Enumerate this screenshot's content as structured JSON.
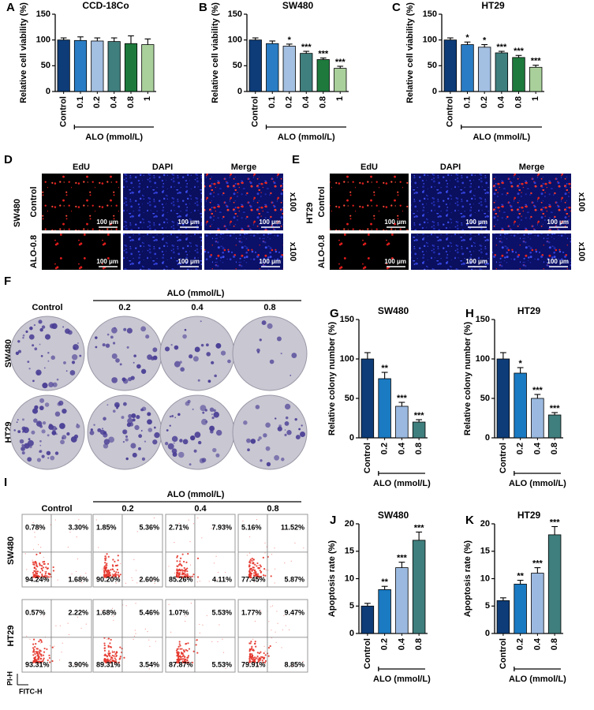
{
  "chart_data": [
    {
      "type": "bar",
      "label": "A",
      "title": "CCD-18Co",
      "ylabel": "Relative cell viability (%)",
      "xlabel": "ALO (mmol/L)",
      "categories": [
        "Control",
        "0.1",
        "0.2",
        "0.4",
        "0.8",
        "1"
      ],
      "values": [
        100,
        99,
        98,
        97,
        93,
        91
      ],
      "errors": [
        4,
        7,
        6,
        7,
        15,
        11
      ],
      "annotations": [
        null,
        null,
        null,
        null,
        null,
        null
      ],
      "colors": [
        "#0d3c78",
        "#2a7dc4",
        "#a3bfe2",
        "#3f7f7e",
        "#1d7a3c",
        "#a9d09b"
      ],
      "ylim": [
        0,
        150
      ],
      "yticks": [
        0,
        50,
        100,
        150
      ]
    },
    {
      "type": "bar",
      "label": "B",
      "title": "SW480",
      "ylabel": "Relative cell viability (%)",
      "xlabel": "ALO (mmol/L)",
      "categories": [
        "Control",
        "0.1",
        "0.2",
        "0.4",
        "0.8",
        "1"
      ],
      "values": [
        100,
        93,
        88,
        74,
        62,
        45
      ],
      "errors": [
        4,
        5,
        4,
        4,
        3,
        4
      ],
      "annotations": [
        null,
        null,
        "*",
        "***",
        "***",
        "***"
      ],
      "colors": [
        "#0d3c78",
        "#2a7dc4",
        "#a3bfe2",
        "#3f7f7e",
        "#1d7a3c",
        "#a9d09b"
      ],
      "ylim": [
        0,
        150
      ],
      "yticks": [
        0,
        50,
        100,
        150
      ]
    },
    {
      "type": "bar",
      "label": "C",
      "title": "HT29",
      "ylabel": "Relative cell viability (%)",
      "xlabel": "ALO (mmol/L)",
      "categories": [
        "Control",
        "0.1",
        "0.2",
        "0.4",
        "0.8",
        "1"
      ],
      "values": [
        100,
        91,
        86,
        75,
        66,
        47
      ],
      "errors": [
        4,
        5,
        5,
        3,
        4,
        4
      ],
      "annotations": [
        null,
        "*",
        "*",
        "***",
        "***",
        "***"
      ],
      "colors": [
        "#0d3c78",
        "#2a7dc4",
        "#a3bfe2",
        "#3f7f7e",
        "#1d7a3c",
        "#a9d09b"
      ],
      "ylim": [
        0,
        150
      ],
      "yticks": [
        0,
        50,
        100,
        150
      ]
    },
    {
      "type": "bar",
      "label": "G",
      "title": "SW480",
      "ylabel": "Relative colony number (%)",
      "xlabel": "ALO (mmol/L)",
      "categories": [
        "Control",
        "0.2",
        "0.4",
        "0.8"
      ],
      "values": [
        100,
        75,
        40,
        20
      ],
      "errors": [
        8,
        8,
        5,
        3
      ],
      "annotations": [
        null,
        "**",
        "***",
        "***"
      ],
      "colors": [
        "#0d3c78",
        "#1a7ac2",
        "#9bb9e0",
        "#3f7f7e"
      ],
      "ylim": [
        0,
        150
      ],
      "yticks": [
        0,
        50,
        100,
        150
      ]
    },
    {
      "type": "bar",
      "label": "H",
      "title": "HT29",
      "ylabel": "Relative colony number (%)",
      "xlabel": "ALO (mmol/L)",
      "categories": [
        "Control",
        "0.2",
        "0.4",
        "0.8"
      ],
      "values": [
        100,
        82,
        50,
        29
      ],
      "errors": [
        8,
        7,
        5,
        3
      ],
      "annotations": [
        null,
        "*",
        "***",
        "***"
      ],
      "colors": [
        "#0d3c78",
        "#1a7ac2",
        "#9bb9e0",
        "#3f7f7e"
      ],
      "ylim": [
        0,
        150
      ],
      "yticks": [
        0,
        50,
        100,
        150
      ]
    },
    {
      "type": "bar",
      "label": "J",
      "title": "SW480",
      "ylabel": "Apoptosis rate (%)",
      "xlabel": "ALO (mmol/L)",
      "categories": [
        "Control",
        "0.2",
        "0.4",
        "0.8"
      ],
      "values": [
        5,
        8,
        12,
        17
      ],
      "errors": [
        0.5,
        0.6,
        1,
        1.5
      ],
      "annotations": [
        null,
        "**",
        "***",
        "***"
      ],
      "colors": [
        "#0d3c78",
        "#1a7ac2",
        "#9bb9e0",
        "#3f7f7e"
      ],
      "ylim": [
        0,
        20
      ],
      "yticks": [
        0,
        5,
        10,
        15,
        20
      ]
    },
    {
      "type": "bar",
      "label": "K",
      "title": "HT29",
      "ylabel": "Apoptosis rate (%)",
      "xlabel": "ALO (mmol/L)",
      "categories": [
        "Control",
        "0.2",
        "0.4",
        "0.8"
      ],
      "values": [
        6,
        9,
        11,
        18
      ],
      "errors": [
        0.5,
        0.7,
        1,
        1.5
      ],
      "annotations": [
        null,
        "**",
        "***",
        "***"
      ],
      "colors": [
        "#0d3c78",
        "#1a7ac2",
        "#9bb9e0",
        "#3f7f7e"
      ],
      "ylim": [
        0,
        20
      ],
      "yticks": [
        0,
        5,
        10,
        15,
        20
      ]
    }
  ],
  "microscopy": [
    {
      "label": "D",
      "cell_line": "SW480",
      "channels": [
        "EdU",
        "DAPI",
        "Merge"
      ],
      "groups": [
        "Control",
        "ALO-0.8"
      ],
      "magnification": "x100",
      "scale_bar": "100 μm"
    },
    {
      "label": "E",
      "cell_line": "HT29",
      "channels": [
        "EdU",
        "DAPI",
        "Merge"
      ],
      "groups": [
        "Control",
        "ALO-0.8"
      ],
      "magnification": "x100",
      "scale_bar": "100 μm"
    }
  ],
  "colony": {
    "label": "F",
    "treatment": "ALO (mmol/L)",
    "columns": [
      "Control",
      "0.2",
      "0.4",
      "0.8"
    ],
    "rows": [
      "SW480",
      "HT29"
    ]
  },
  "flow": {
    "label": "I",
    "treatment": "ALO (mmol/L)",
    "columns": [
      "Control",
      "0.2",
      "0.4",
      "0.8"
    ],
    "rows": [
      "SW480",
      "HT29"
    ],
    "quadrants": [
      [
        [
          "0.78%",
          "3.30%",
          "94.24%",
          "1.68%"
        ],
        [
          "1.85%",
          "5.36%",
          "90.20%",
          "2.60%"
        ],
        [
          "2.71%",
          "7.93%",
          "85.26%",
          "4.11%"
        ],
        [
          "5.16%",
          "11.52%",
          "77.45%",
          "5.87%"
        ]
      ],
      [
        [
          "0.57%",
          "2.22%",
          "93.31%",
          "3.90%"
        ],
        [
          "1.68%",
          "5.46%",
          "89.31%",
          "3.54%"
        ],
        [
          "1.07%",
          "5.53%",
          "87.87%",
          "5.53%"
        ],
        [
          "1.77%",
          "9.47%",
          "79.91%",
          "8.85%"
        ]
      ]
    ],
    "y_axis": "PI-H",
    "x_axis": "FITC-H"
  }
}
